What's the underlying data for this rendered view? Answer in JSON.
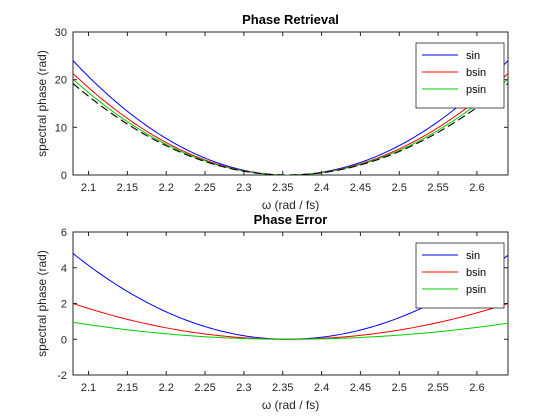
{
  "chart_data": [
    {
      "type": "line",
      "title": "Phase Retrieval",
      "xlabel": "ω (rad / fs)",
      "ylabel": "spectral phase (rad)",
      "xlim": [
        2.08,
        2.64
      ],
      "ylim": [
        0,
        30
      ],
      "xticks": [
        "2.1",
        "2.15",
        "2.2",
        "2.25",
        "2.3",
        "2.35",
        "2.4",
        "2.45",
        "2.5",
        "2.55",
        "2.6"
      ],
      "yticks": [
        "0",
        "10",
        "20",
        "30"
      ],
      "legend_position": "top-right",
      "vertex": 2.356,
      "series": [
        {
          "name": "sin",
          "color": "#0000ff",
          "x": [
            2.08,
            2.64
          ],
          "y": [
            24.0,
            24.0
          ],
          "dashed": false
        },
        {
          "name": "bsin",
          "color": "#ff0000",
          "x": [
            2.08,
            2.64
          ],
          "y": [
            21.3,
            21.3
          ],
          "dashed": false
        },
        {
          "name": "psin",
          "color": "#00cc00",
          "x": [
            2.08,
            2.64
          ],
          "y": [
            20.1,
            20.1
          ],
          "dashed": false
        },
        {
          "name": "",
          "color": "#000000",
          "x": [
            2.08,
            2.64
          ],
          "y": [
            19.2,
            19.2
          ],
          "dashed": true
        }
      ]
    },
    {
      "type": "line",
      "title": "Phase Error",
      "xlabel": "ω (rad / fs)",
      "ylabel": "spectral phase (rad)",
      "xlim": [
        2.08,
        2.64
      ],
      "ylim": [
        -2,
        6
      ],
      "xticks": [
        "2.1",
        "2.15",
        "2.2",
        "2.25",
        "2.3",
        "2.35",
        "2.4",
        "2.45",
        "2.5",
        "2.55",
        "2.6"
      ],
      "yticks": [
        "-2",
        "0",
        "2",
        "4",
        "6"
      ],
      "legend_position": "top-right",
      "vertex": 2.356,
      "series": [
        {
          "name": "sin",
          "color": "#0000ff",
          "x": [
            2.08,
            2.64
          ],
          "y": [
            4.8,
            4.7
          ],
          "dashed": false
        },
        {
          "name": "bsin",
          "color": "#ff0000",
          "x": [
            2.08,
            2.64
          ],
          "y": [
            2.0,
            2.0
          ],
          "dashed": false
        },
        {
          "name": "psin",
          "color": "#00cc00",
          "x": [
            2.08,
            2.64
          ],
          "y": [
            0.95,
            0.9
          ],
          "dashed": false
        }
      ]
    }
  ]
}
